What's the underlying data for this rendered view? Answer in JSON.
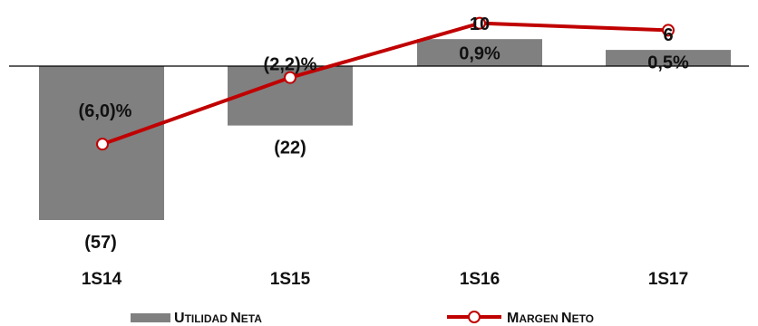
{
  "chart_data": {
    "type": "bar",
    "categories": [
      "1S14",
      "1S15",
      "1S16",
      "1S17"
    ],
    "series": [
      {
        "name": "Utilidad Neta",
        "type": "bar",
        "values": [
          -57,
          -22,
          10,
          6
        ],
        "labels": [
          "(57)",
          "(22)",
          "10",
          "6"
        ],
        "color": "#808080"
      },
      {
        "name": "Margen Neto",
        "type": "line",
        "values": [
          -6.0,
          -2.2,
          0.9,
          0.5
        ],
        "labels": [
          "(6,0)%",
          "(2,2)%",
          "0,9%",
          "0,5%"
        ],
        "color": "#c00000"
      }
    ],
    "legend": {
      "position": "bottom",
      "items": [
        {
          "first": "U",
          "rest": "TILIDAD ",
          "first2": "N",
          "rest2": "ETA"
        },
        {
          "first": "M",
          "rest": "ARGEN ",
          "first2": "N",
          "rest2": "ETO"
        }
      ]
    },
    "grid": false
  }
}
